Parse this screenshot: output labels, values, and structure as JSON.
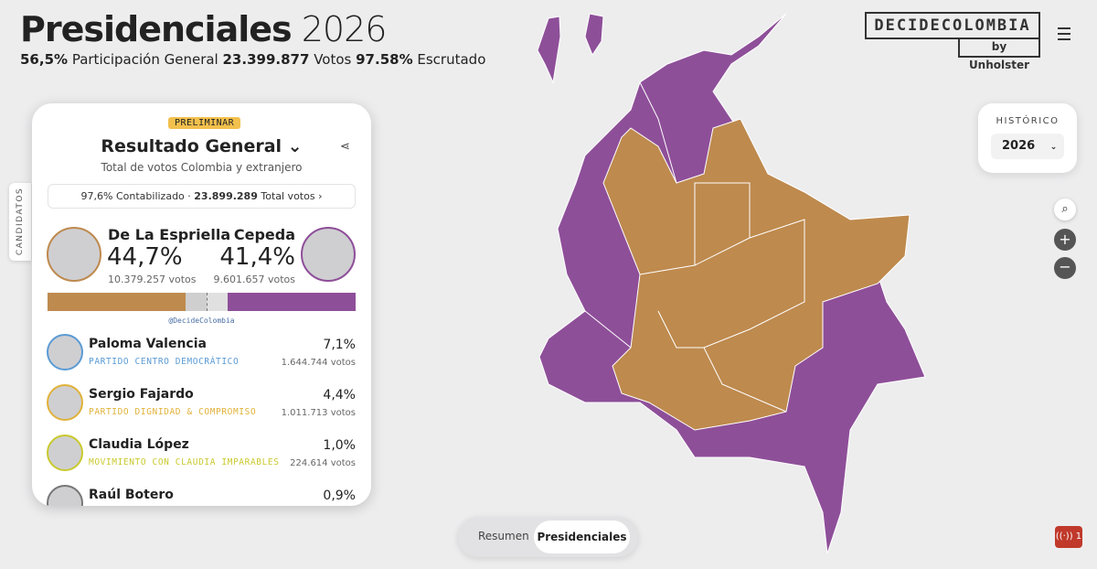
{
  "header": {
    "title": "Presidenciales",
    "year": "2026",
    "stats": [
      {
        "value": "56,5%",
        "label": "Participación General"
      },
      {
        "value": "23.399.877",
        "label": "Votos"
      },
      {
        "value": "97.58%",
        "label": "Escrutado"
      }
    ]
  },
  "logo": {
    "name": "DECIDECOLOMBIA",
    "by": "by Unholster"
  },
  "panel": {
    "badge": "PRELIMINAR",
    "title": "Resultado General",
    "subtitle": "Total de votos Colombia y extranjero",
    "summary": {
      "counted": "97,6%",
      "counted_label": "Contabilizado ·",
      "total": "23.899.289",
      "total_label": "Total votos"
    },
    "side_tab": "CANDIDATOS",
    "leaders": [
      {
        "name": "De La Espriella",
        "share": "44,7%",
        "votes": "10.379.257 votos"
      },
      {
        "name": "Cepeda",
        "share": "41,4%",
        "votes": "9.601.657 votos"
      }
    ],
    "credit": "@DecideColombia",
    "candidates": [
      {
        "name": "Paloma Valencia",
        "party": "PARTIDO CENTRO DEMOCRÁTICO",
        "share": "7,1%",
        "votes": "1.644.744 votos"
      },
      {
        "name": "Sergio Fajardo",
        "party": "PARTIDO DIGNIDAD & COMPROMISO",
        "share": "4,4%",
        "votes": "1.011.713 votos"
      },
      {
        "name": "Claudia López",
        "party": "MOVIMIENTO CON CLAUDIA IMPARABLES",
        "share": "1,0%",
        "votes": "224.614 votos"
      },
      {
        "name": "Raúl Botero",
        "share": "0,9%"
      }
    ]
  },
  "historic": {
    "label": "HISTÓRICO",
    "year": "2026"
  },
  "tabs": [
    "Resumen",
    "Presidenciales"
  ],
  "live": "1"
}
